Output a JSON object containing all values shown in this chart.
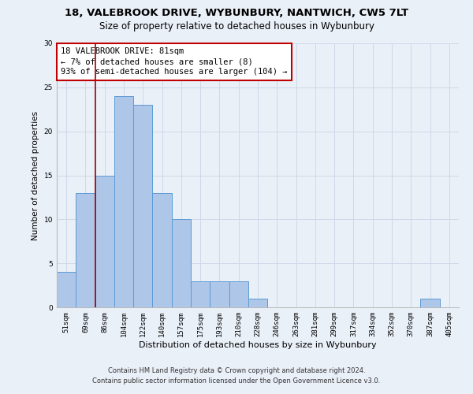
{
  "title": "18, VALEBROOK DRIVE, WYBUNBURY, NANTWICH, CW5 7LT",
  "subtitle": "Size of property relative to detached houses in Wybunbury",
  "xlabel": "Distribution of detached houses by size in Wybunbury",
  "ylabel": "Number of detached properties",
  "categories": [
    "51sqm",
    "69sqm",
    "86sqm",
    "104sqm",
    "122sqm",
    "140sqm",
    "157sqm",
    "175sqm",
    "193sqm",
    "210sqm",
    "228sqm",
    "246sqm",
    "263sqm",
    "281sqm",
    "299sqm",
    "317sqm",
    "334sqm",
    "352sqm",
    "370sqm",
    "387sqm",
    "405sqm"
  ],
  "values": [
    4,
    13,
    15,
    24,
    23,
    13,
    10,
    3,
    3,
    3,
    1,
    0,
    0,
    0,
    0,
    0,
    0,
    0,
    0,
    1,
    0
  ],
  "bar_color": "#aec6e8",
  "bar_edge_color": "#5b9bd5",
  "vline_color": "#a00000",
  "vline_x": 1.5,
  "annotation_text": "18 VALEBROOK DRIVE: 81sqm\n← 7% of detached houses are smaller (8)\n93% of semi-detached houses are larger (104) →",
  "annotation_box_color": "#ffffff",
  "annotation_box_edge_color": "#c00000",
  "ylim": [
    0,
    30
  ],
  "yticks": [
    0,
    5,
    10,
    15,
    20,
    25,
    30
  ],
  "grid_color": "#d0d8e8",
  "background_color": "#eaf0f8",
  "footer_line1": "Contains HM Land Registry data © Crown copyright and database right 2024.",
  "footer_line2": "Contains public sector information licensed under the Open Government Licence v3.0.",
  "title_fontsize": 9.5,
  "subtitle_fontsize": 8.5,
  "xlabel_fontsize": 8,
  "ylabel_fontsize": 7.5,
  "tick_fontsize": 6.5,
  "annotation_fontsize": 7.5,
  "footer_fontsize": 6
}
